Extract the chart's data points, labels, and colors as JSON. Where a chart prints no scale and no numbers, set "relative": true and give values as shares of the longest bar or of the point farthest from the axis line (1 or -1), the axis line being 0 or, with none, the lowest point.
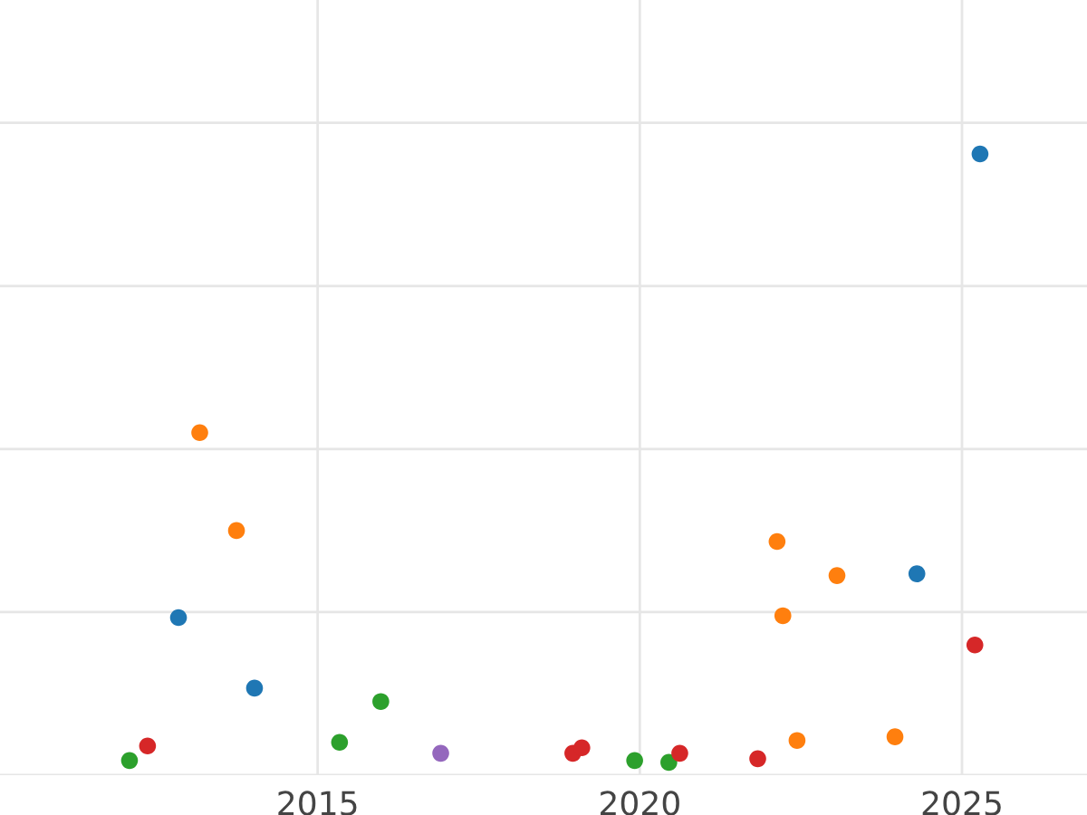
{
  "chart_data": {
    "type": "scatter",
    "relative": true,
    "xlim": [
      2010.07,
      2026.94
    ],
    "xticks": [
      2015,
      2020,
      2025
    ],
    "grid": true,
    "marker": "circle",
    "tick_labels": "x",
    "series": [
      {
        "color": "#2ca02c",
        "x": [
          2012.08,
          2015.34,
          2015.98,
          2019.92,
          2020.45
        ],
        "values": [
          0.003,
          0.033,
          0.1,
          0.003,
          0
        ]
      },
      {
        "color": "#d62728",
        "x": [
          2012.36,
          2018.96,
          2019.1,
          2020.62,
          2021.83,
          2025.2
        ],
        "values": [
          0.027,
          0.015,
          0.024,
          0.015,
          0.006,
          0.193
        ]
      },
      {
        "color": "#1f77b4",
        "x": [
          2012.84,
          2014.02,
          2024.3,
          2025.28
        ],
        "values": [
          0.238,
          0.122,
          0.31,
          1
        ]
      },
      {
        "color": "#ff7f0e",
        "x": [
          2013.17,
          2013.74,
          2022.13,
          2022.22,
          2023.06,
          2022.44,
          2023.96
        ],
        "values": [
          0.542,
          0.381,
          0.363,
          0.241,
          0.307,
          0.036,
          0.042
        ]
      },
      {
        "color": "#9467bd",
        "x": [
          2016.91
        ],
        "values": [
          0.015
        ]
      }
    ]
  }
}
